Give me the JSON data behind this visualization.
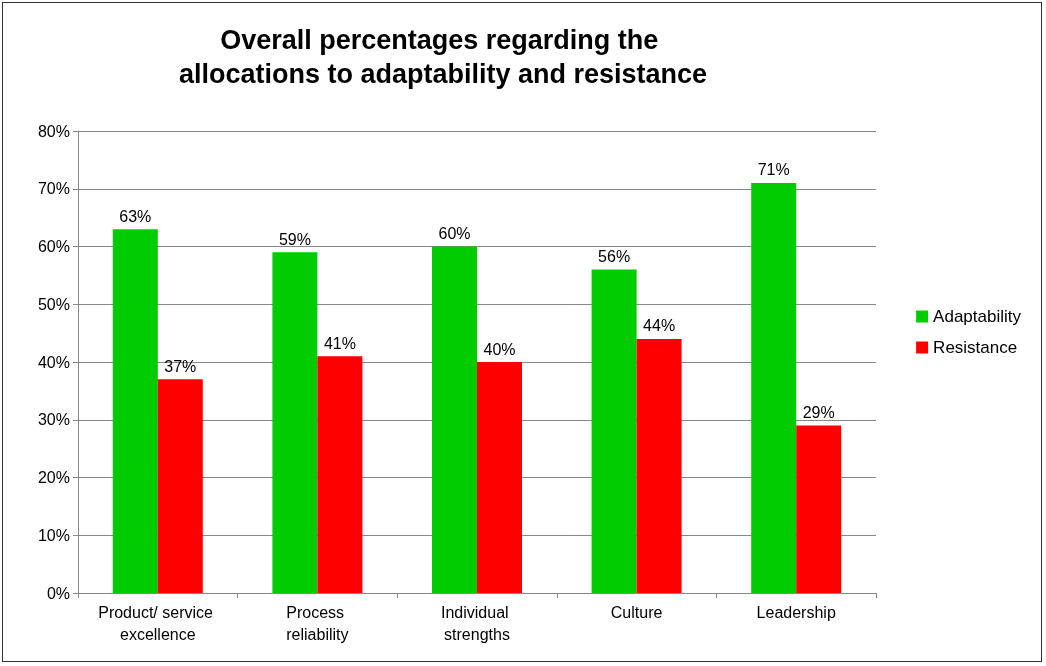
{
  "chart_data": {
    "type": "bar",
    "title": "Overall percentages regarding the allocations to adaptability and resistance",
    "categories": [
      "Product/ service excellence",
      "Process reliability",
      "Individual strengths",
      "Culture",
      "Leadership"
    ],
    "series": [
      {
        "name": "Adaptability",
        "color": "#00cc00",
        "values": [
          63,
          59,
          60,
          56,
          71
        ],
        "value_labels": [
          "63%",
          "59%",
          "60%",
          "56%",
          "71%"
        ]
      },
      {
        "name": "Resistance",
        "color": "#ff0000",
        "values": [
          37,
          41,
          40,
          44,
          29
        ],
        "value_labels": [
          "37%",
          "41%",
          "40%",
          "44%",
          "29%"
        ]
      }
    ],
    "ylim": [
      0,
      80
    ],
    "yticks": [
      {
        "value": 0,
        "label": "0%"
      },
      {
        "value": 10,
        "label": "10%"
      },
      {
        "value": 20,
        "label": "20%"
      },
      {
        "value": 30,
        "label": "30%"
      },
      {
        "value": 40,
        "label": "40%"
      },
      {
        "value": 50,
        "label": "50%"
      },
      {
        "value": 60,
        "label": "60%"
      },
      {
        "value": 70,
        "label": "70%"
      },
      {
        "value": 80,
        "label": "80%"
      }
    ],
    "grid": "y",
    "legend": "right"
  }
}
